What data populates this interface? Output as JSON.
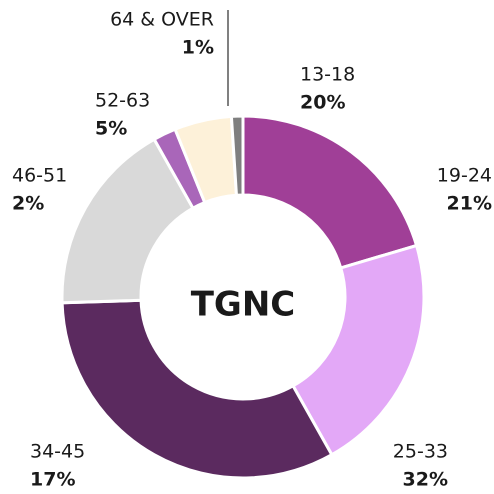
{
  "chart_data": {
    "type": "donut",
    "center_label": "TGNC",
    "categories": [
      "13-18",
      "19-24",
      "25-33",
      "34-45",
      "46-51",
      "52-63",
      "64 & OVER"
    ],
    "values": [
      20,
      21,
      32,
      17,
      2,
      5,
      1
    ],
    "value_labels": [
      "20%",
      "21%",
      "32%",
      "17%",
      "2%",
      "5%",
      "1%"
    ],
    "colors": [
      "#a03f97",
      "#e3a8f7",
      "#5b2a5f",
      "#d9d9d9",
      "#a966b9",
      "#fdf1d9",
      "#7f7f7f"
    ]
  }
}
